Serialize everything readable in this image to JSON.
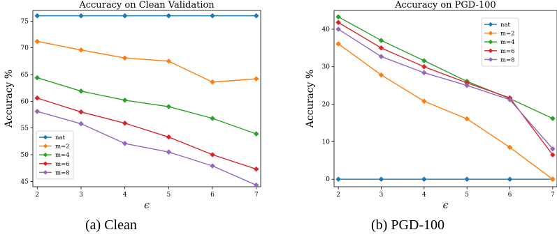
{
  "chart_data": [
    {
      "type": "line",
      "title": "Accuracy on Clean Validation",
      "xlabel": "ϵ",
      "ylabel": "Accuracy %",
      "x": [
        2,
        3,
        4,
        5,
        6,
        7
      ],
      "xlim": [
        1.9,
        7.1
      ],
      "ylim": [
        44,
        77
      ],
      "yticks": [
        45,
        50,
        55,
        60,
        65,
        70,
        75
      ],
      "grid": false,
      "legend_position": "bottom-left",
      "series": [
        {
          "name": "nat",
          "color": "#1f77b4",
          "values": [
            76,
            76,
            76,
            76,
            76,
            76
          ]
        },
        {
          "name": "m=2",
          "color": "#ff7f0e",
          "values": [
            71.2,
            69.6,
            68.1,
            67.5,
            63.6,
            64.2
          ]
        },
        {
          "name": "m=4",
          "color": "#2ca02c",
          "values": [
            64.4,
            61.9,
            60.2,
            59.0,
            56.8,
            53.9
          ]
        },
        {
          "name": "m=6",
          "color": "#d62728",
          "values": [
            60.6,
            58.0,
            55.9,
            53.3,
            50.0,
            47.3
          ]
        },
        {
          "name": "m=8",
          "color": "#9467bd",
          "values": [
            58.1,
            55.8,
            52.1,
            50.5,
            47.9,
            44.3
          ]
        }
      ]
    },
    {
      "type": "line",
      "title": "Accuracy on PGD-100",
      "xlabel": "ϵ",
      "ylabel": "Accuracy %",
      "x": [
        2,
        3,
        4,
        5,
        6,
        7
      ],
      "xlim": [
        1.9,
        7.1
      ],
      "ylim": [
        -2,
        45
      ],
      "yticks": [
        0,
        10,
        20,
        30,
        40
      ],
      "grid": false,
      "legend_position": "top-right",
      "series": [
        {
          "name": "nat",
          "color": "#1f77b4",
          "values": [
            0,
            0,
            0,
            0,
            0,
            0
          ]
        },
        {
          "name": "m=2",
          "color": "#ff7f0e",
          "values": [
            36.1,
            27.8,
            20.8,
            16.1,
            8.5,
            0.0
          ]
        },
        {
          "name": "m=4",
          "color": "#2ca02c",
          "values": [
            43.3,
            37.0,
            31.6,
            26.1,
            21.5,
            16.2
          ]
        },
        {
          "name": "m=6",
          "color": "#d62728",
          "values": [
            41.8,
            35.0,
            30.0,
            25.7,
            21.7,
            6.5
          ]
        },
        {
          "name": "m=8",
          "color": "#9467bd",
          "values": [
            40.0,
            32.7,
            28.4,
            25.0,
            21.2,
            8.1
          ]
        }
      ]
    }
  ],
  "captions": {
    "a": "(a) Clean",
    "b": "(b) PGD-100"
  }
}
